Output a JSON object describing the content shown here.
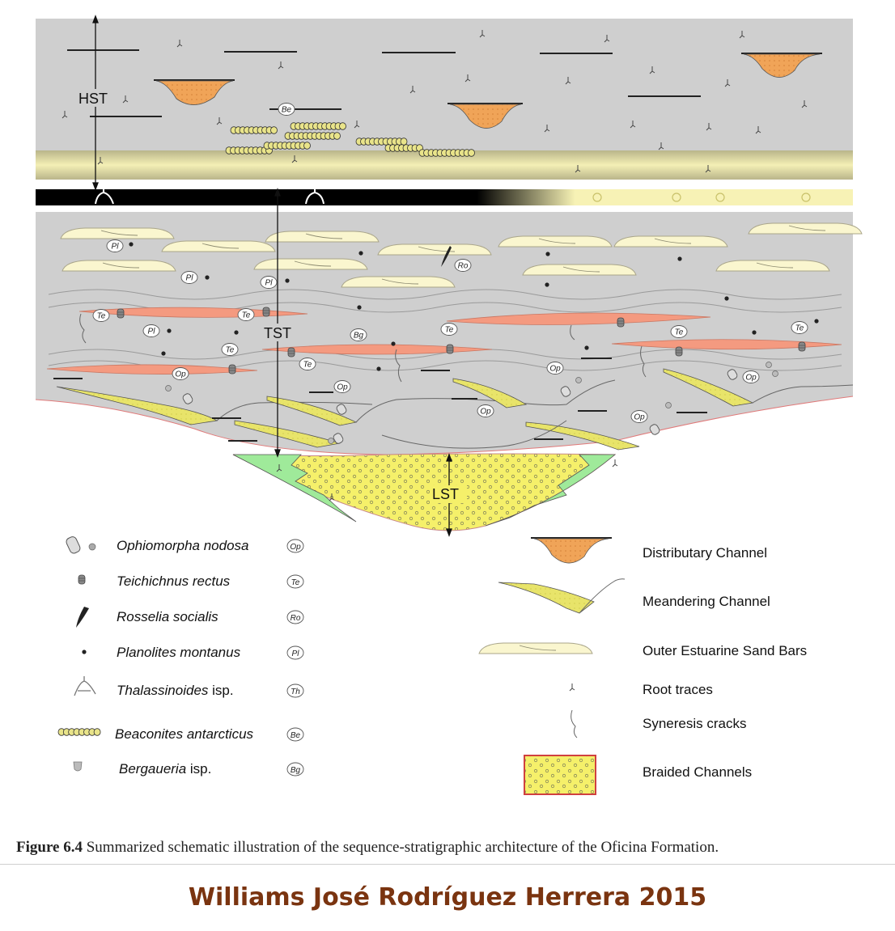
{
  "units": {
    "hst": "HST",
    "tst": "TST",
    "lst": "LST"
  },
  "trace_tags": {
    "op": "Op",
    "te": "Te",
    "ro": "Ro",
    "pl": "Pl",
    "th": "Th",
    "be": "Be",
    "bg": "Bg"
  },
  "ichnofossil_legend": [
    {
      "name": "Ophiomorpha nodosa",
      "suffix": "",
      "code": "Op",
      "icon": "ophiomorpha-icon"
    },
    {
      "name": "Teichichnus rectus",
      "suffix": "",
      "code": "Te",
      "icon": "teichichnus-icon"
    },
    {
      "name": "Rosselia socialis",
      "suffix": "",
      "code": "Ro",
      "icon": "rosselia-icon"
    },
    {
      "name": "Planolites montanus",
      "suffix": "",
      "code": "Pl",
      "icon": "planolites-dot-icon"
    },
    {
      "name": "Thalassinoides",
      "suffix": " isp.",
      "code": "Th",
      "icon": "thalassinoides-icon"
    },
    {
      "name": "Beaconites antarcticus",
      "suffix": "",
      "code": "Be",
      "icon": "beaconites-icon"
    },
    {
      "name": "Bergaueria",
      "suffix": " isp.",
      "code": "Bg",
      "icon": "bergaueria-icon"
    }
  ],
  "facies_legend": [
    {
      "label": "Distributary Channel",
      "icon": "distributary-channel-icon"
    },
    {
      "label": "Meandering Channel",
      "icon": "meandering-channel-icon"
    },
    {
      "label": "Outer Estuarine Sand Bars",
      "icon": "sand-bar-icon"
    },
    {
      "label": "Root traces",
      "icon": "root-trace-icon"
    },
    {
      "label": "Syneresis cracks",
      "icon": "syneresis-crack-icon"
    },
    {
      "label": "Braided Channels",
      "icon": "braided-channel-icon"
    }
  ],
  "caption": {
    "figure_label": "Figure 6.4",
    "text": " Summarized schematic illustration of the sequence-stratigraphic architecture of the Oficina Formation."
  },
  "author": "Williams José Rodríguez Herrera 2015",
  "colors": {
    "background_gray": "#cfcfcf",
    "distributary_fill": "#f0a458",
    "meander_fill": "#e8e46a",
    "sand_bar_fill": "#faf6cf",
    "salmon_bed": "#f49a80",
    "braided_fill": "#f5f06a",
    "green_fill": "#9fea9a",
    "author_color": "#7a3410"
  }
}
